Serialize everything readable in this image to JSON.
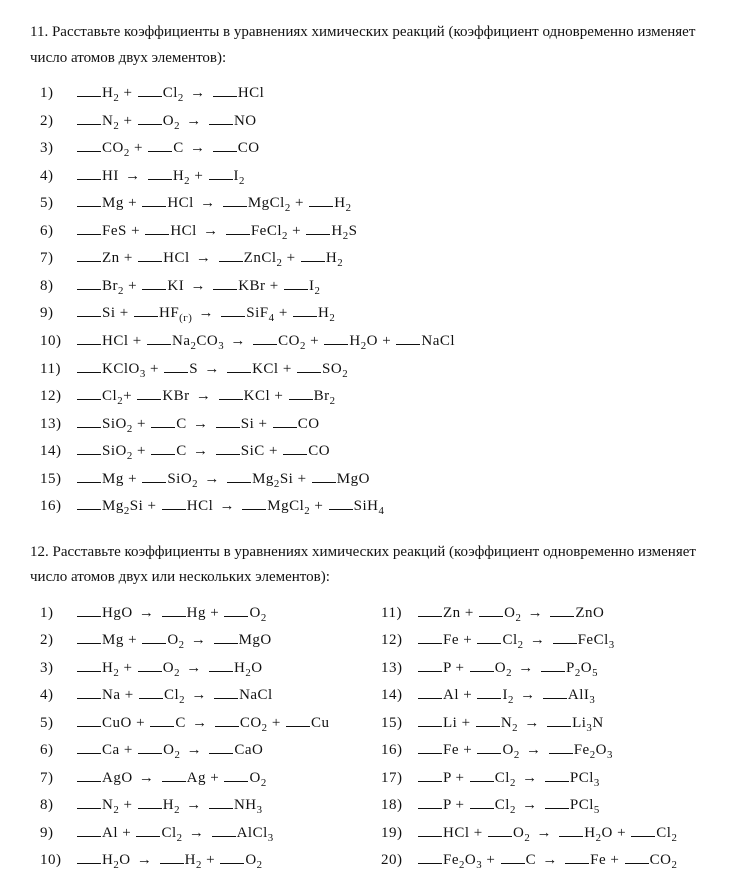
{
  "problem11": {
    "num": "11.",
    "text": "Расставьте коэффициенты в уравнениях химических реакций (ко­эффициент одновременно изменяет число атомов двух элементов):"
  },
  "problem12": {
    "num": "12.",
    "text": "Расставьте коэффициенты в уравнениях химических реакций (ко­эффициент одновременно изменяет число атомов двух или не­скольких элементов):"
  },
  "p11": {
    "n1": "1)",
    "n2": "2)",
    "n3": "3)",
    "n4": "4)",
    "n5": "5)",
    "n6": "6)",
    "n7": "7)",
    "n8": "8)",
    "n9": "9)",
    "n10": "10)",
    "n11": "11)",
    "n12": "12)",
    "n13": "13)",
    "n14": "14)",
    "n15": "15)",
    "n16": "16)"
  },
  "p12": {
    "n1": "1)",
    "n2": "2)",
    "n3": "3)",
    "n4": "4)",
    "n5": "5)",
    "n6": "6)",
    "n7": "7)",
    "n8": "8)",
    "n9": "9)",
    "n10": "10)",
    "n11": "11)",
    "n12": "12)",
    "n13": "13)",
    "n14": "14)",
    "n15": "15)",
    "n16": "16)",
    "n17": "17)",
    "n18": "18)",
    "n19": "19)",
    "n20": "20)"
  },
  "f": {
    "H2": "H",
    "Cl2": "Cl",
    "HCl": "HCl",
    "N2": "N",
    "O2": "O",
    "NO": "NO",
    "CO2": "CO",
    "C": "C",
    "CO": "CO",
    "HI": "HI",
    "I2": "I",
    "Mg": "Mg",
    "MgCl2": "MgCl",
    "FeS": "FeS",
    "FeCl2": "FeCl",
    "H2S": "H",
    "Zn": "Zn",
    "ZnCl2": "ZnCl",
    "Br2": "Br",
    "KI": "KI",
    "KBr": "KBr",
    "Si": "Si",
    "HF": "HF",
    "g": "(г)",
    "SiF4": "SiF",
    "Na2CO3a": "Na",
    "Na2CO3b": "CO",
    "H2O": "H",
    "NaCl": "NaCl",
    "KClO3": "KClO",
    "S": "S",
    "KCl": "KCl",
    "SO2": "SO",
    "SiO2": "SiO",
    "SiC": "SiC",
    "Mg2Si": "Mg",
    "MgO": "MgO",
    "SiH4": "SiH",
    "HgO": "HgO",
    "Hg": "Hg",
    "Na": "Na",
    "CuO": "CuO",
    "Cu": "Cu",
    "Ca": "Ca",
    "CaO": "CaO",
    "AgO": "AgO",
    "Ag": "Ag",
    "NH3": "NH",
    "Al": "Al",
    "AlCl3": "AlCl",
    "ZnO": "ZnO",
    "Fe": "Fe",
    "FeCl3": "FeCl",
    "P": "P",
    "P2O5a": "P",
    "P2O5b": "O",
    "AlI3": "AlI",
    "Li": "Li",
    "Li3N": "Li",
    "Fe2O3a": "Fe",
    "Fe2O3b": "O",
    "PCl3": "PCl",
    "PCl5": "PCl"
  },
  "sym": {
    "plus": " + ",
    "arrow": "→"
  }
}
